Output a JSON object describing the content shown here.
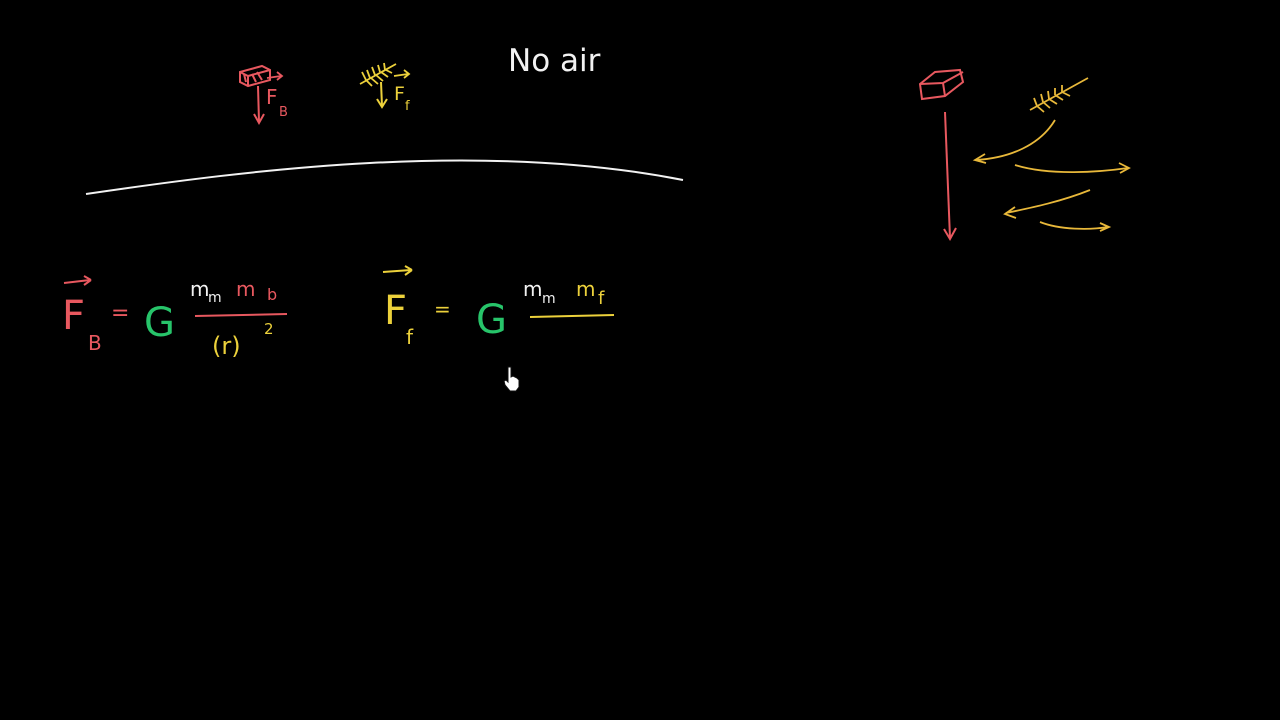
{
  "colors": {
    "background": "#000000",
    "white": "#f2f2f2",
    "red": "#e8585f",
    "yellow": "#ecd13b",
    "green": "#27c46a",
    "orange_yellow": "#e8b83a"
  },
  "title": "No air",
  "top_labels": {
    "brick_force": {
      "letter": "F",
      "subscript": "B"
    },
    "feather_force": {
      "letter": "F",
      "subscript": "f"
    }
  },
  "equation_brick": {
    "lhs_letter": "F",
    "lhs_subscript": "B",
    "equals": "=",
    "constant": "G",
    "numerator_m1": "m",
    "numerator_m1_sub": "m",
    "numerator_m2": "m",
    "numerator_m2_sub": "b",
    "denominator": "(r)",
    "denominator_exponent": "2"
  },
  "equation_feather": {
    "lhs_letter": "F",
    "lhs_subscript": "f",
    "equals": "=",
    "constant": "G",
    "numerator_m1": "m",
    "numerator_m1_sub": "m",
    "numerator_m2": "m",
    "numerator_m2_sub": "f"
  },
  "icons": {
    "brick_top": "brick-icon",
    "feather_top": "feather-icon",
    "brick_right": "brick-icon",
    "feather_right": "feather-icon",
    "cursor": "hand-pointer-icon"
  }
}
